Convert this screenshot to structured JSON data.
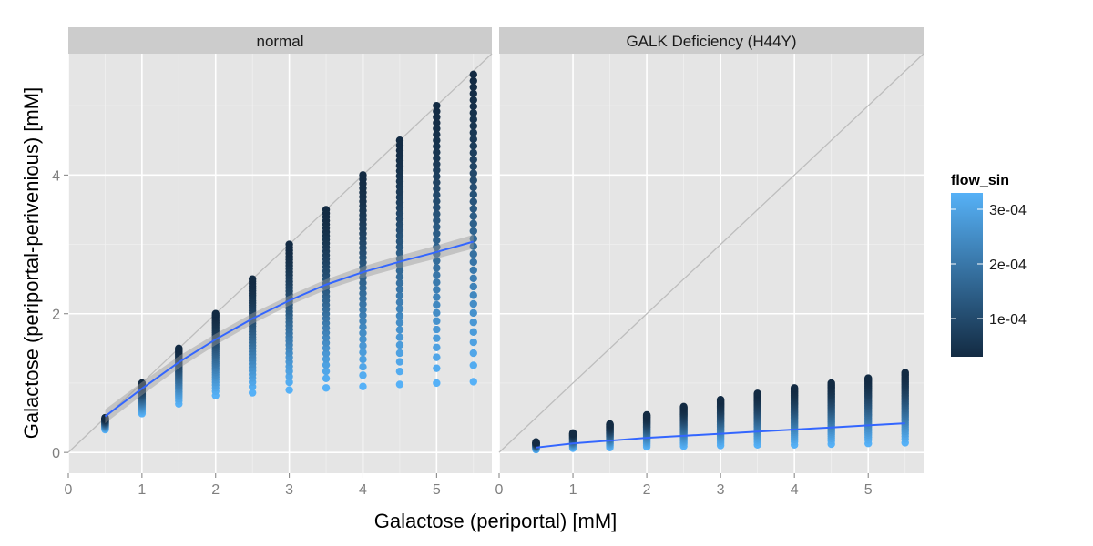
{
  "chart_data": {
    "type": "scatter",
    "xlabel": "Galactose (periportal) [mM]",
    "ylabel": "Galactose (periportal-perivenious) [mM]",
    "xlim": [
      0,
      5.75
    ],
    "ylim": [
      -0.3,
      5.75
    ],
    "x_ticks": [
      "0",
      "1",
      "2",
      "3",
      "4",
      "5"
    ],
    "y_ticks": [
      "0",
      "2",
      "4"
    ],
    "grid": true,
    "reference_line": "y = x",
    "legend": {
      "title": "flow_sin",
      "position": "right",
      "type": "colorbar",
      "low_color": "#132B43",
      "high_color": "#56B1F7",
      "range": [
        3e-05,
        0.00033
      ],
      "ticks": [
        {
          "label": "1e-04",
          "value": 0.0001
        },
        {
          "label": "2e-04",
          "value": 0.0002
        },
        {
          "label": "3e-04",
          "value": 0.0003
        }
      ]
    },
    "x_levels": [
      0.5,
      1,
      1.5,
      2,
      2.5,
      3,
      3.5,
      4,
      4.5,
      5,
      5.5
    ],
    "panels": [
      {
        "title": "normal",
        "y_max": [
          0.5,
          1.0,
          1.5,
          2.0,
          2.5,
          3.0,
          3.5,
          4.0,
          4.5,
          5.0,
          5.45
        ],
        "y_min": [
          0.33,
          0.56,
          0.7,
          0.82,
          0.86,
          0.9,
          0.93,
          0.95,
          0.98,
          1.0,
          1.02
        ],
        "smooth": {
          "x": [
            0.5,
            1,
            1.5,
            2,
            2.5,
            3,
            3.5,
            4,
            4.5,
            5,
            5.5
          ],
          "y": [
            0.52,
            0.92,
            1.3,
            1.63,
            1.93,
            2.19,
            2.42,
            2.6,
            2.75,
            2.89,
            3.04
          ]
        }
      },
      {
        "title": "GALK Deficiency (H44Y)",
        "y_max": [
          0.15,
          0.28,
          0.41,
          0.54,
          0.66,
          0.76,
          0.85,
          0.93,
          1.0,
          1.07,
          1.15
        ],
        "y_min": [
          0.04,
          0.06,
          0.07,
          0.08,
          0.09,
          0.1,
          0.11,
          0.11,
          0.12,
          0.13,
          0.14
        ],
        "smooth": {
          "x": [
            0.5,
            1,
            1.5,
            2,
            2.5,
            3,
            3.5,
            4,
            4.5,
            5,
            5.5
          ],
          "y": [
            0.07,
            0.13,
            0.17,
            0.21,
            0.24,
            0.27,
            0.3,
            0.33,
            0.36,
            0.39,
            0.42
          ]
        }
      }
    ]
  }
}
